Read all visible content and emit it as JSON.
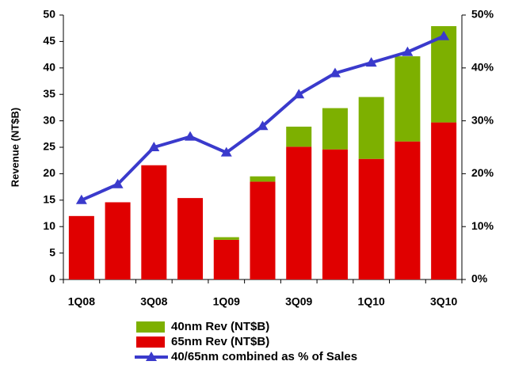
{
  "chart_data": {
    "type": "bar",
    "y_label": "Revenue (NT$B)",
    "categories": [
      "1Q08",
      null,
      "3Q08",
      null,
      "1Q09",
      null,
      "3Q09",
      null,
      "1Q10",
      null,
      "3Q10"
    ],
    "series": [
      {
        "name": "40nm Rev (NT$B)",
        "color": "#7db000",
        "values": [
          0,
          0,
          0,
          0,
          0.5,
          1.0,
          3.8,
          7.8,
          11.7,
          16.1,
          18.2
        ]
      },
      {
        "name": "65nm Rev (NT$B)",
        "color": "#e00000",
        "values": [
          12.0,
          14.6,
          21.6,
          15.4,
          7.5,
          18.5,
          25.1,
          24.6,
          22.8,
          26.1,
          29.7
        ]
      },
      {
        "name": "40/65nm combined as % of Sales",
        "type": "line",
        "axis": "y2",
        "color": "#3a3acc",
        "values": [
          15,
          18,
          25,
          27,
          24,
          29,
          35,
          39,
          41,
          43,
          46
        ]
      }
    ],
    "ylim": [
      0,
      50
    ],
    "yticks": [
      0,
      5,
      10,
      15,
      20,
      25,
      30,
      35,
      40,
      45,
      50
    ],
    "y2lim": [
      0,
      50
    ],
    "y2ticks": [
      {
        "value": 0,
        "label": "0%"
      },
      {
        "value": 10,
        "label": "10%"
      },
      {
        "value": 20,
        "label": "20%"
      },
      {
        "value": 30,
        "label": "30%"
      },
      {
        "value": 40,
        "label": "40%"
      },
      {
        "value": 50,
        "label": "50%"
      }
    ],
    "stacked": true
  }
}
